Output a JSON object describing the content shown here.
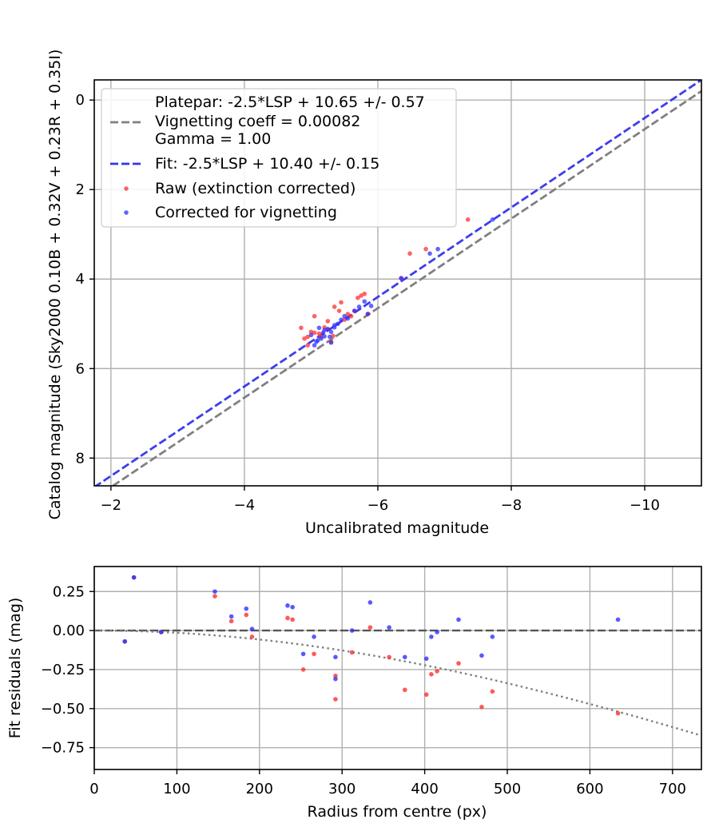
{
  "chart_data": [
    {
      "type": "scatter",
      "xlabel": "Uncalibrated magnitude",
      "ylabel": "Catalog magnitude (Sky2000 0.10B + 0.32V + 0.23R + 0.35I)",
      "xlim": [
        -1.75,
        -10.85
      ],
      "ylim": [
        8.62,
        -0.45
      ],
      "x_inverted": true,
      "y_inverted": true,
      "xticks": [
        -2,
        -4,
        -6,
        -8,
        -10
      ],
      "xtick_labels": [
        "−2",
        "−4",
        "−6",
        "−8",
        "−10"
      ],
      "yticks": [
        0,
        2,
        4,
        6,
        8
      ],
      "ytick_labels": [
        "0",
        "2",
        "4",
        "6",
        "8"
      ],
      "grid": true,
      "legend_position": "top-left",
      "lines": [
        {
          "name": "Platepar: -2.5*LSP + 10.65 +/- 0.57",
          "legend_lines": [
            "Platepar: -2.5*LSP + 10.65 +/- 0.57",
            "Vignetting coeff = 0.00082",
            "Gamma = 1.00"
          ],
          "style": "dashed",
          "color": "#808080",
          "offset": 10.65
        },
        {
          "name": "Fit: -2.5*LSP + 10.40 +/- 0.15",
          "legend_lines": [
            "Fit: -2.5*LSP + 10.40 +/- 0.15"
          ],
          "style": "dashed",
          "color": "#3333ee",
          "offset": 10.4
        }
      ],
      "series": [
        {
          "name": "Raw (extinction corrected)",
          "color": "#ff3030",
          "points": [
            [
              -7.35,
              2.67
            ],
            [
              -6.72,
              3.33
            ],
            [
              -6.48,
              3.43
            ],
            [
              -6.35,
              3.98
            ],
            [
              -5.85,
              4.78
            ],
            [
              -5.8,
              4.33
            ],
            [
              -5.75,
              4.37
            ],
            [
              -5.7,
              4.42
            ],
            [
              -5.65,
              4.71
            ],
            [
              -5.55,
              4.78
            ],
            [
              -5.6,
              4.83
            ],
            [
              -5.45,
              4.52
            ],
            [
              -5.5,
              4.91
            ],
            [
              -5.35,
              4.62
            ],
            [
              -5.42,
              4.71
            ],
            [
              -5.25,
              4.94
            ],
            [
              -5.2,
              5.08
            ],
            [
              -5.15,
              5.28
            ],
            [
              -5.05,
              4.83
            ],
            [
              -5.0,
              5.18
            ],
            [
              -4.95,
              5.29
            ],
            [
              -4.9,
              5.33
            ],
            [
              -4.85,
              5.09
            ],
            [
              -4.95,
              5.48
            ],
            [
              -5.05,
              5.2
            ],
            [
              -5.3,
              5.4
            ],
            [
              -5.25,
              5.12
            ],
            [
              -5.12,
              5.22
            ],
            [
              -5.33,
              5.27
            ]
          ]
        },
        {
          "name": "Corrected for vignetting",
          "color": "#3030ff",
          "points": [
            [
              -7.72,
              2.67
            ],
            [
              -6.9,
              3.33
            ],
            [
              -6.78,
              3.43
            ],
            [
              -6.35,
              3.98
            ],
            [
              -5.9,
              4.6
            ],
            [
              -5.85,
              4.78
            ],
            [
              -5.8,
              4.5
            ],
            [
              -5.72,
              4.62
            ],
            [
              -5.65,
              4.71
            ],
            [
              -5.55,
              4.88
            ],
            [
              -5.5,
              4.83
            ],
            [
              -5.45,
              4.91
            ],
            [
              -5.4,
              5.0
            ],
            [
              -5.35,
              5.08
            ],
            [
              -5.3,
              5.18
            ],
            [
              -5.25,
              5.12
            ],
            [
              -5.2,
              5.28
            ],
            [
              -5.15,
              5.33
            ],
            [
              -5.1,
              5.37
            ],
            [
              -5.05,
              5.48
            ],
            [
              -5.12,
              5.09
            ],
            [
              -5.18,
              5.2
            ],
            [
              -5.3,
              5.42
            ],
            [
              -5.28,
              5.29
            ],
            [
              -5.0,
              5.25
            ],
            [
              -5.2,
              5.14
            ],
            [
              -5.35,
              5.03
            ],
            [
              -5.08,
              5.4
            ]
          ]
        }
      ]
    },
    {
      "type": "scatter",
      "xlabel": "Radius from centre (px)",
      "ylabel": "Fit residuals (mag)",
      "xlim": [
        0,
        735
      ],
      "ylim": [
        -0.89,
        0.41
      ],
      "xticks": [
        0,
        100,
        200,
        300,
        400,
        500,
        600,
        700
      ],
      "xtick_labels": [
        "0",
        "100",
        "200",
        "300",
        "400",
        "500",
        "600",
        "700"
      ],
      "yticks": [
        0.25,
        0.0,
        -0.25,
        -0.5,
        -0.75
      ],
      "ytick_labels": [
        "0.25",
        "0.00",
        "−0.25",
        "−0.50",
        "−0.75"
      ],
      "grid": true,
      "reference_lines": [
        {
          "type": "horizontal",
          "y": 0.0,
          "style": "dashed",
          "color": "#555555"
        },
        {
          "type": "vignetting-curve",
          "coefficient": 0.00082,
          "style": "dotted",
          "color": "#808080"
        }
      ],
      "series": [
        {
          "name": "Raw (extinction corrected)",
          "color": "#ff3030",
          "points": [
            [
              37,
              -0.07
            ],
            [
              48,
              0.34
            ],
            [
              81,
              -0.01
            ],
            [
              146,
              0.22
            ],
            [
              166,
              0.06
            ],
            [
              184,
              0.1
            ],
            [
              191,
              -0.04
            ],
            [
              234,
              0.08
            ],
            [
              240,
              0.07
            ],
            [
              253,
              -0.25
            ],
            [
              266,
              -0.15
            ],
            [
              292,
              -0.29
            ],
            [
              292,
              -0.44
            ],
            [
              312,
              -0.14
            ],
            [
              334,
              0.02
            ],
            [
              357,
              -0.17
            ],
            [
              376,
              -0.38
            ],
            [
              402,
              -0.41
            ],
            [
              408,
              -0.28
            ],
            [
              415,
              -0.26
            ],
            [
              441,
              -0.21
            ],
            [
              469,
              -0.49
            ],
            [
              482,
              -0.39
            ],
            [
              634,
              -0.53
            ]
          ]
        },
        {
          "name": "Corrected for vignetting",
          "color": "#3030ff",
          "points": [
            [
              37,
              -0.07
            ],
            [
              48,
              0.34
            ],
            [
              81,
              -0.01
            ],
            [
              146,
              0.25
            ],
            [
              166,
              0.09
            ],
            [
              184,
              0.14
            ],
            [
              191,
              0.01
            ],
            [
              234,
              0.16
            ],
            [
              240,
              0.15
            ],
            [
              253,
              -0.15
            ],
            [
              266,
              -0.04
            ],
            [
              292,
              -0.17
            ],
            [
              292,
              -0.31
            ],
            [
              312,
              0.0
            ],
            [
              334,
              0.18
            ],
            [
              357,
              0.02
            ],
            [
              376,
              -0.17
            ],
            [
              402,
              -0.18
            ],
            [
              408,
              -0.04
            ],
            [
              415,
              -0.01
            ],
            [
              441,
              0.07
            ],
            [
              469,
              -0.16
            ],
            [
              482,
              -0.04
            ],
            [
              634,
              0.07
            ]
          ]
        }
      ]
    }
  ]
}
